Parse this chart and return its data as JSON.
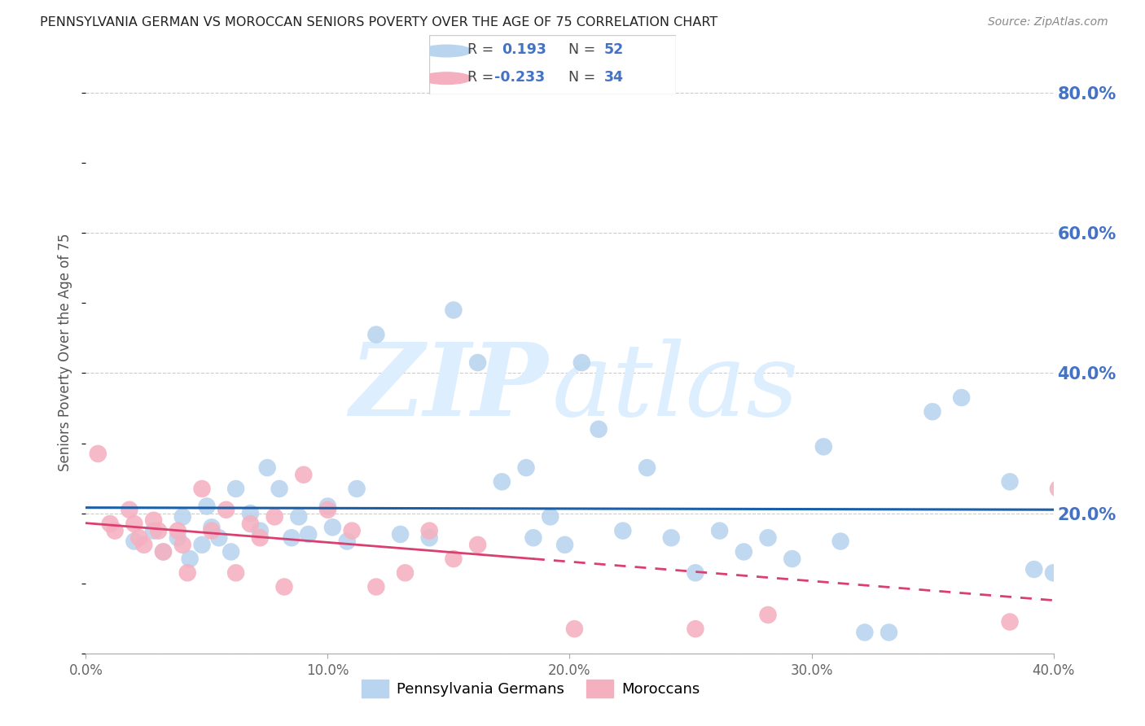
{
  "title": "PENNSYLVANIA GERMAN VS MOROCCAN SENIORS POVERTY OVER THE AGE OF 75 CORRELATION CHART",
  "source": "Source: ZipAtlas.com",
  "ylabel": "Seniors Poverty Over the Age of 75",
  "xmin": 0.0,
  "xmax": 0.4,
  "ymin": 0.0,
  "ymax": 0.86,
  "yticks_right": [
    0.2,
    0.4,
    0.6,
    0.8
  ],
  "xticks": [
    0.0,
    0.1,
    0.2,
    0.3,
    0.4
  ],
  "blue_R": "0.193",
  "blue_N": "52",
  "pink_R": "-0.233",
  "pink_N": "34",
  "blue_dot_color": "#b8d4ee",
  "pink_dot_color": "#f5b0c0",
  "blue_line_color": "#1a5fa8",
  "pink_line_color": "#d94070",
  "legend_blue_label": "Pennsylvania Germans",
  "legend_pink_label": "Moroccans",
  "right_label_color": "#4472C4",
  "blue_scatter_x": [
    0.02,
    0.028,
    0.032,
    0.038,
    0.04,
    0.043,
    0.048,
    0.05,
    0.052,
    0.055,
    0.06,
    0.062,
    0.068,
    0.072,
    0.075,
    0.08,
    0.085,
    0.088,
    0.092,
    0.1,
    0.102,
    0.108,
    0.112,
    0.12,
    0.13,
    0.142,
    0.152,
    0.162,
    0.172,
    0.182,
    0.185,
    0.192,
    0.198,
    0.205,
    0.212,
    0.222,
    0.232,
    0.242,
    0.252,
    0.262,
    0.272,
    0.282,
    0.292,
    0.305,
    0.312,
    0.322,
    0.332,
    0.35,
    0.362,
    0.382,
    0.392,
    0.4
  ],
  "blue_scatter_y": [
    0.16,
    0.175,
    0.145,
    0.165,
    0.195,
    0.135,
    0.155,
    0.21,
    0.18,
    0.165,
    0.145,
    0.235,
    0.2,
    0.175,
    0.265,
    0.235,
    0.165,
    0.195,
    0.17,
    0.21,
    0.18,
    0.16,
    0.235,
    0.455,
    0.17,
    0.165,
    0.49,
    0.415,
    0.245,
    0.265,
    0.165,
    0.195,
    0.155,
    0.415,
    0.32,
    0.175,
    0.265,
    0.165,
    0.115,
    0.175,
    0.145,
    0.165,
    0.135,
    0.295,
    0.16,
    0.03,
    0.03,
    0.345,
    0.365,
    0.245,
    0.12,
    0.115
  ],
  "pink_scatter_x": [
    0.005,
    0.01,
    0.012,
    0.018,
    0.02,
    0.022,
    0.024,
    0.028,
    0.03,
    0.032,
    0.038,
    0.04,
    0.042,
    0.048,
    0.052,
    0.058,
    0.062,
    0.068,
    0.072,
    0.078,
    0.082,
    0.09,
    0.1,
    0.11,
    0.12,
    0.132,
    0.142,
    0.152,
    0.162,
    0.202,
    0.252,
    0.282,
    0.382,
    0.402
  ],
  "pink_scatter_y": [
    0.285,
    0.185,
    0.175,
    0.205,
    0.185,
    0.165,
    0.155,
    0.19,
    0.175,
    0.145,
    0.175,
    0.155,
    0.115,
    0.235,
    0.175,
    0.205,
    0.115,
    0.185,
    0.165,
    0.195,
    0.095,
    0.255,
    0.205,
    0.175,
    0.095,
    0.115,
    0.175,
    0.135,
    0.155,
    0.035,
    0.035,
    0.055,
    0.045,
    0.235
  ]
}
